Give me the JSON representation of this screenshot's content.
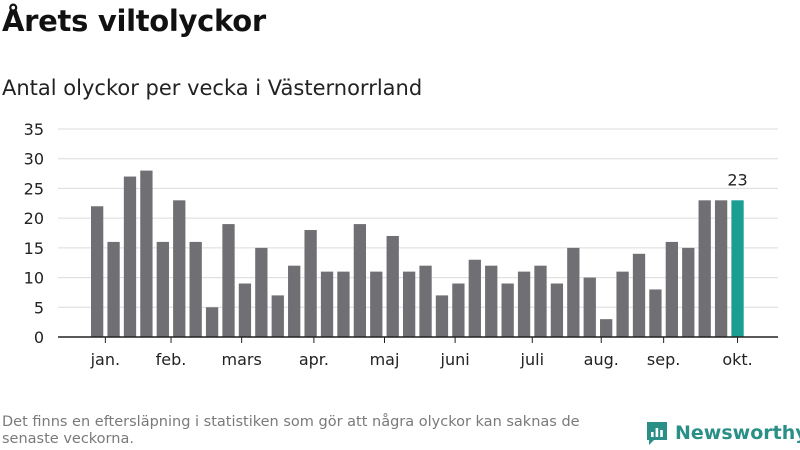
{
  "header": {
    "title": "Årets viltolyckor",
    "subtitle": "Antal olyckor per vecka i Västernorrland"
  },
  "chart_data": {
    "type": "bar",
    "title": "Årets viltolyckor",
    "subtitle": "Antal olyckor per vecka i Västernorrland",
    "xlabel": "",
    "ylabel": "",
    "ylim": [
      0,
      35
    ],
    "yticks": [
      0,
      5,
      10,
      15,
      20,
      25,
      30,
      35
    ],
    "grid": true,
    "values": [
      22,
      16,
      27,
      28,
      16,
      23,
      16,
      5,
      19,
      9,
      15,
      7,
      12,
      18,
      11,
      11,
      19,
      11,
      17,
      11,
      12,
      7,
      9,
      13,
      12,
      9,
      11,
      12,
      9,
      15,
      10,
      3,
      11,
      14,
      8,
      16,
      15,
      23,
      23,
      23
    ],
    "months": [
      {
        "label": "jan.",
        "at": 0.5
      },
      {
        "label": "feb.",
        "at": 4.5
      },
      {
        "label": "mars",
        "at": 8.8
      },
      {
        "label": "apr.",
        "at": 13.2
      },
      {
        "label": "maj",
        "at": 17.5
      },
      {
        "label": "juni",
        "at": 21.8
      },
      {
        "label": "juli",
        "at": 26.5
      },
      {
        "label": "aug.",
        "at": 30.7
      },
      {
        "label": "sep.",
        "at": 34.5
      },
      {
        "label": "okt.",
        "at": 39.0
      }
    ],
    "highlight_index": 39,
    "highlight_label": "23",
    "colors": {
      "bar": "#706f73",
      "highlight": "#1a9e92",
      "grid": "#dcdcdc",
      "axis": "#222222",
      "tick_text": "#222222"
    }
  },
  "footer": {
    "note": "Det finns en eftersläpning i statistiken som gör att några olyckor kan saknas de senaste veckorna.",
    "brand": "Newsworthy"
  },
  "colors": {
    "brand": "#2a8f87"
  }
}
